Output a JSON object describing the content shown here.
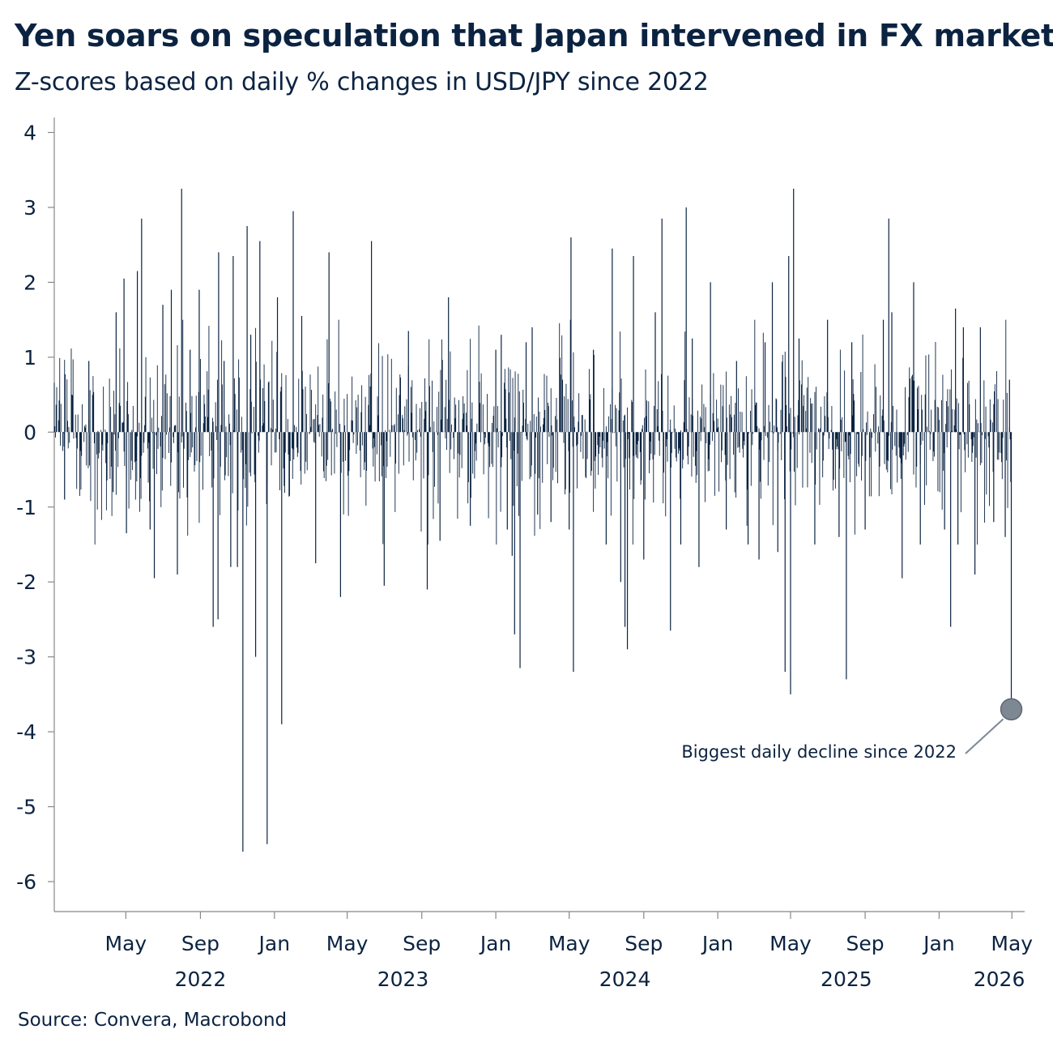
{
  "header": {
    "title": "Yen soars on speculation that Japan intervened in FX market",
    "subtitle": "Z-scores based on daily % changes in USD/JPY since 2022"
  },
  "footer": {
    "source": "Source: Convera, Macrobond"
  },
  "colors": {
    "series": "#0b2341",
    "marker": "#7d8893",
    "axis": "#888888"
  },
  "chart_data": {
    "type": "bar",
    "x_type": "date",
    "xlim": [
      "2022-01-03",
      "2026-05-22"
    ],
    "ylim": [
      -6.4,
      4.2
    ],
    "yticks": [
      4,
      3,
      2,
      1,
      0,
      -1,
      -2,
      -3,
      -4,
      -5,
      -6
    ],
    "ytick_labels": [
      "4",
      "3",
      "2",
      "1",
      "0",
      "-1",
      "-2",
      "-3",
      "-4",
      "-5",
      "-6"
    ],
    "xticks": [
      {
        "date": "2022-05-01",
        "label": "May"
      },
      {
        "date": "2022-09-01",
        "label": "Sep"
      },
      {
        "date": "2023-01-01",
        "label": "Jan"
      },
      {
        "date": "2023-05-01",
        "label": "May"
      },
      {
        "date": "2023-09-01",
        "label": "Sep"
      },
      {
        "date": "2024-01-01",
        "label": "Jan"
      },
      {
        "date": "2024-05-01",
        "label": "May"
      },
      {
        "date": "2024-09-01",
        "label": "Sep"
      },
      {
        "date": "2025-01-01",
        "label": "Jan"
      },
      {
        "date": "2025-05-01",
        "label": "May"
      },
      {
        "date": "2025-09-01",
        "label": "Sep"
      },
      {
        "date": "2026-01-01",
        "label": "Jan"
      },
      {
        "date": "2026-05-01",
        "label": "May"
      }
    ],
    "year_labels": [
      {
        "date": "2022-09-01",
        "label": "2022"
      },
      {
        "date": "2023-08-01",
        "label": "2023"
      },
      {
        "date": "2024-08-01",
        "label": "2024"
      },
      {
        "date": "2025-08-01",
        "label": "2025"
      },
      {
        "date": "2026-04-10",
        "label": "2026"
      }
    ],
    "series": [
      {
        "values": [
          [
            "2022-01-20",
            -0.9
          ],
          [
            "2022-02-01",
            0.5
          ],
          [
            "2022-03-01",
            0.95
          ],
          [
            "2022-04-10",
            -0.8
          ],
          [
            "2022-04-15",
            1.6
          ],
          [
            "2022-04-28",
            2.05
          ],
          [
            "2022-05-02",
            -1.35
          ],
          [
            "2022-05-20",
            2.15
          ],
          [
            "2022-05-27",
            2.85
          ],
          [
            "2022-06-10",
            -1.3
          ],
          [
            "2022-06-17",
            -1.95
          ],
          [
            "2022-07-01",
            1.7
          ],
          [
            "2022-07-15",
            1.9
          ],
          [
            "2022-07-25",
            -1.9
          ],
          [
            "2022-08-01",
            3.25
          ],
          [
            "2022-08-15",
            1.1
          ],
          [
            "2022-08-30",
            1.9
          ],
          [
            "2022-09-22",
            -2.6
          ],
          [
            "2022-09-30",
            -2.5
          ],
          [
            "2022-10-01",
            2.4
          ],
          [
            "2022-10-10",
            0.95
          ],
          [
            "2022-10-21",
            -1.8
          ],
          [
            "2022-10-25",
            2.35
          ],
          [
            "2022-11-01",
            -1.8
          ],
          [
            "2022-11-10",
            -5.6
          ],
          [
            "2022-11-17",
            2.75
          ],
          [
            "2022-11-23",
            1.3
          ],
          [
            "2022-12-01",
            -3.0
          ],
          [
            "2022-12-08",
            2.55
          ],
          [
            "2022-12-20",
            -5.5
          ],
          [
            "2023-01-06",
            1.8
          ],
          [
            "2023-01-13",
            -3.9
          ],
          [
            "2023-02-01",
            2.95
          ],
          [
            "2023-02-15",
            1.55
          ],
          [
            "2023-03-10",
            -1.75
          ],
          [
            "2023-04-01",
            2.4
          ],
          [
            "2023-04-20",
            -2.2
          ],
          [
            "2023-06-10",
            2.55
          ],
          [
            "2023-07-01",
            -2.05
          ],
          [
            "2023-08-10",
            1.35
          ],
          [
            "2023-09-10",
            -2.1
          ],
          [
            "2023-10-01",
            -1.45
          ],
          [
            "2023-10-15",
            1.8
          ],
          [
            "2023-11-20",
            -1.25
          ],
          [
            "2024-01-01",
            1.1
          ],
          [
            "2024-01-10",
            1.3
          ],
          [
            "2024-01-20",
            -1.3
          ],
          [
            "2024-01-28",
            -1.65
          ],
          [
            "2024-02-01",
            -2.7
          ],
          [
            "2024-02-10",
            -3.15
          ],
          [
            "2024-02-20",
            1.2
          ],
          [
            "2024-03-01",
            1.4
          ],
          [
            "2024-03-10",
            -1.1
          ],
          [
            "2024-04-01",
            -1.2
          ],
          [
            "2024-04-20",
            0.7
          ],
          [
            "2024-05-01",
            -1.3
          ],
          [
            "2024-05-04",
            2.6
          ],
          [
            "2024-05-08",
            -3.2
          ],
          [
            "2024-06-10",
            1.1
          ],
          [
            "2024-07-01",
            -1.5
          ],
          [
            "2024-07-11",
            2.45
          ],
          [
            "2024-07-25",
            -2.0
          ],
          [
            "2024-08-01",
            -2.6
          ],
          [
            "2024-08-05",
            -2.9
          ],
          [
            "2024-08-15",
            2.35
          ],
          [
            "2024-09-01",
            -1.7
          ],
          [
            "2024-09-20",
            1.6
          ],
          [
            "2024-10-01",
            2.85
          ],
          [
            "2024-10-15",
            -2.65
          ],
          [
            "2024-11-01",
            -1.5
          ],
          [
            "2024-11-10",
            3.0
          ],
          [
            "2024-11-20",
            1.25
          ],
          [
            "2024-12-01",
            -1.8
          ],
          [
            "2024-12-20",
            2.0
          ],
          [
            "2025-01-15",
            -1.3
          ],
          [
            "2025-02-01",
            0.95
          ],
          [
            "2025-02-20",
            -1.5
          ],
          [
            "2025-03-10",
            -1.7
          ],
          [
            "2025-03-20",
            1.2
          ],
          [
            "2025-04-01",
            2.0
          ],
          [
            "2025-04-10",
            -1.6
          ],
          [
            "2025-04-22",
            -3.2
          ],
          [
            "2025-04-28",
            2.35
          ],
          [
            "2025-05-01",
            -3.5
          ],
          [
            "2025-05-06",
            3.25
          ],
          [
            "2025-05-15",
            1.25
          ],
          [
            "2025-06-10",
            -1.5
          ],
          [
            "2025-07-01",
            1.5
          ],
          [
            "2025-07-20",
            -1.4
          ],
          [
            "2025-08-01",
            -3.3
          ],
          [
            "2025-08-10",
            1.2
          ],
          [
            "2025-09-01",
            -1.3
          ],
          [
            "2025-10-01",
            1.5
          ],
          [
            "2025-10-10",
            2.85
          ],
          [
            "2025-10-15",
            1.6
          ],
          [
            "2025-11-01",
            -1.95
          ],
          [
            "2025-11-20",
            2.0
          ],
          [
            "2025-12-01",
            -1.5
          ],
          [
            "2026-01-10",
            -1.3
          ],
          [
            "2026-01-20",
            -2.6
          ],
          [
            "2026-01-28",
            1.65
          ],
          [
            "2026-02-01",
            -1.5
          ],
          [
            "2026-02-10",
            1.4
          ],
          [
            "2026-03-01",
            -1.9
          ],
          [
            "2026-03-10",
            1.4
          ],
          [
            "2026-04-01",
            -1.2
          ],
          [
            "2026-04-20",
            -1.4
          ],
          [
            "2026-04-27",
            0.7
          ],
          [
            "2026-04-30",
            -3.7
          ]
        ]
      }
    ],
    "annotation": {
      "text": "Biggest daily decline since 2022",
      "date": "2026-04-30",
      "value": -3.7
    }
  }
}
